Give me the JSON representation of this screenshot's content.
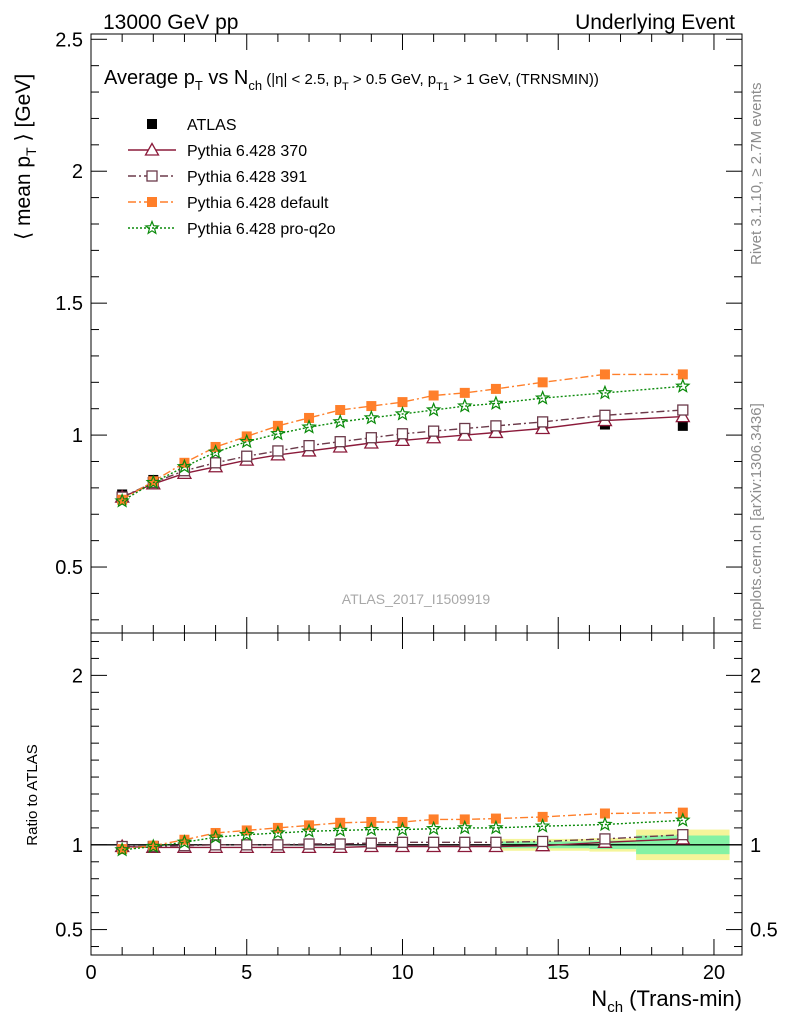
{
  "header": {
    "left": "13000 GeV pp",
    "right": "Underlying Event"
  },
  "side_labels": {
    "rivet": "Rivet 3.1.10, ≥ 2.7M events",
    "mcplots": "mcplots.cern.ch [arXiv:1306.3436]"
  },
  "chart_data": [
    {
      "type": "line",
      "panel": "main",
      "title": {
        "p1": "Average p",
        "p1_sub": "T",
        "p2": " vs N",
        "p2_sub": "ch",
        "p3": " (|η| < 2.5, p",
        "p3_sub": "T",
        "p4": " > 0.5 GeV, p",
        "p4_sub": "T1",
        "p5": " > 1 GeV, (TRNSMIN))"
      },
      "ylabel": "⟨ mean p",
      "ylabel_sub": "T",
      "ylabel_end": " ⟩ [GeV]",
      "watermark": "ATLAS_2017_I1509919",
      "xlim": [
        0,
        20.9
      ],
      "ylim": [
        0.25,
        2.52
      ],
      "yticks": [
        0.5,
        1,
        1.5,
        2,
        2.5
      ],
      "yticklabels": [
        "0.5",
        "1",
        "1.5",
        "2",
        "2.5"
      ],
      "legend_position": "top-left",
      "x": [
        1,
        2,
        3,
        4,
        5,
        6,
        7,
        8,
        9,
        10,
        11,
        12,
        13,
        14.5,
        16.5,
        19
      ],
      "series": [
        {
          "name": "ATLAS",
          "color": "#000000",
          "marker": "square-filled",
          "values": [
            0.775,
            0.83,
            0.87,
            0.895,
            0.92,
            0.94,
            0.955,
            0.97,
            0.98,
            0.99,
            1.0,
            1.01,
            1.02,
            1.03,
            1.04,
            1.035
          ]
        },
        {
          "name": "Pythia 6.428 370",
          "color": "#8b1a3a",
          "marker": "triangle-open",
          "dash": "",
          "values": [
            0.765,
            0.815,
            0.855,
            0.88,
            0.905,
            0.925,
            0.94,
            0.955,
            0.97,
            0.98,
            0.99,
            1.0,
            1.01,
            1.025,
            1.055,
            1.07
          ]
        },
        {
          "name": "Pythia 6.428 391",
          "color": "#6b3a4a",
          "marker": "square-open",
          "dash": "8,3,2,3",
          "values": [
            0.765,
            0.82,
            0.865,
            0.895,
            0.92,
            0.94,
            0.96,
            0.975,
            0.99,
            1.005,
            1.015,
            1.025,
            1.035,
            1.05,
            1.075,
            1.095
          ]
        },
        {
          "name": "Pythia 6.428 default",
          "color": "#ff7f2a",
          "marker": "square-filled",
          "dash": "8,3,2,3",
          "values": [
            0.755,
            0.825,
            0.895,
            0.955,
            0.995,
            1.035,
            1.065,
            1.095,
            1.11,
            1.125,
            1.15,
            1.16,
            1.175,
            1.2,
            1.23,
            1.23
          ]
        },
        {
          "name": "Pythia 6.428 pro-q2o",
          "color": "#0a8a0a",
          "marker": "star",
          "dash": "2,2",
          "values": [
            0.75,
            0.82,
            0.88,
            0.935,
            0.975,
            1.005,
            1.03,
            1.05,
            1.065,
            1.08,
            1.095,
            1.11,
            1.12,
            1.14,
            1.16,
            1.185
          ]
        }
      ]
    },
    {
      "type": "line",
      "panel": "ratio",
      "ylabel": "Ratio to ATLAS",
      "xlabel": "N",
      "xlabel_sub": "ch",
      "xlabel_end": " (Trans-min)",
      "xlim": [
        0,
        20.9
      ],
      "ylim": [
        0.35,
        2.25
      ],
      "xticks": [
        0,
        5,
        10,
        15,
        20
      ],
      "xticklabels": [
        "0",
        "5",
        "10",
        "15",
        "20"
      ],
      "yticks": [
        0.5,
        1,
        2
      ],
      "yticklabels": [
        "0.5",
        "1",
        "2"
      ],
      "x": [
        1,
        2,
        3,
        4,
        5,
        6,
        7,
        8,
        9,
        10,
        11,
        12,
        13,
        14.5,
        16.5,
        19
      ],
      "bands": [
        {
          "x0": 13,
          "x1": 16,
          "inner": 0.02,
          "outer": 0.035
        },
        {
          "x0": 16,
          "x1": 17.5,
          "inner": 0.025,
          "outer": 0.04
        },
        {
          "x0": 17.5,
          "x1": 20.5,
          "inner": 0.055,
          "outer": 0.09
        }
      ],
      "band_colors": {
        "inner": "#84f2a4",
        "outer": "#f5f59a"
      },
      "series": [
        {
          "name": "Pythia 6.428 370",
          "values": [
            0.99,
            0.985,
            0.985,
            0.985,
            0.985,
            0.985,
            0.985,
            0.985,
            0.99,
            0.99,
            0.99,
            0.99,
            0.99,
            0.995,
            1.015,
            1.035
          ]
        },
        {
          "name": "Pythia 6.428 391",
          "values": [
            0.99,
            0.99,
            0.995,
            1.0,
            1.0,
            1.0,
            1.005,
            1.005,
            1.01,
            1.015,
            1.015,
            1.015,
            1.015,
            1.02,
            1.035,
            1.06
          ]
        },
        {
          "name": "Pythia 6.428 default",
          "values": [
            0.975,
            0.995,
            1.03,
            1.07,
            1.085,
            1.1,
            1.115,
            1.13,
            1.135,
            1.135,
            1.15,
            1.15,
            1.155,
            1.165,
            1.185,
            1.19
          ]
        },
        {
          "name": "Pythia 6.428 pro-q2o",
          "values": [
            0.97,
            0.99,
            1.015,
            1.045,
            1.06,
            1.07,
            1.08,
            1.085,
            1.09,
            1.09,
            1.095,
            1.1,
            1.1,
            1.11,
            1.12,
            1.145
          ]
        }
      ]
    }
  ]
}
